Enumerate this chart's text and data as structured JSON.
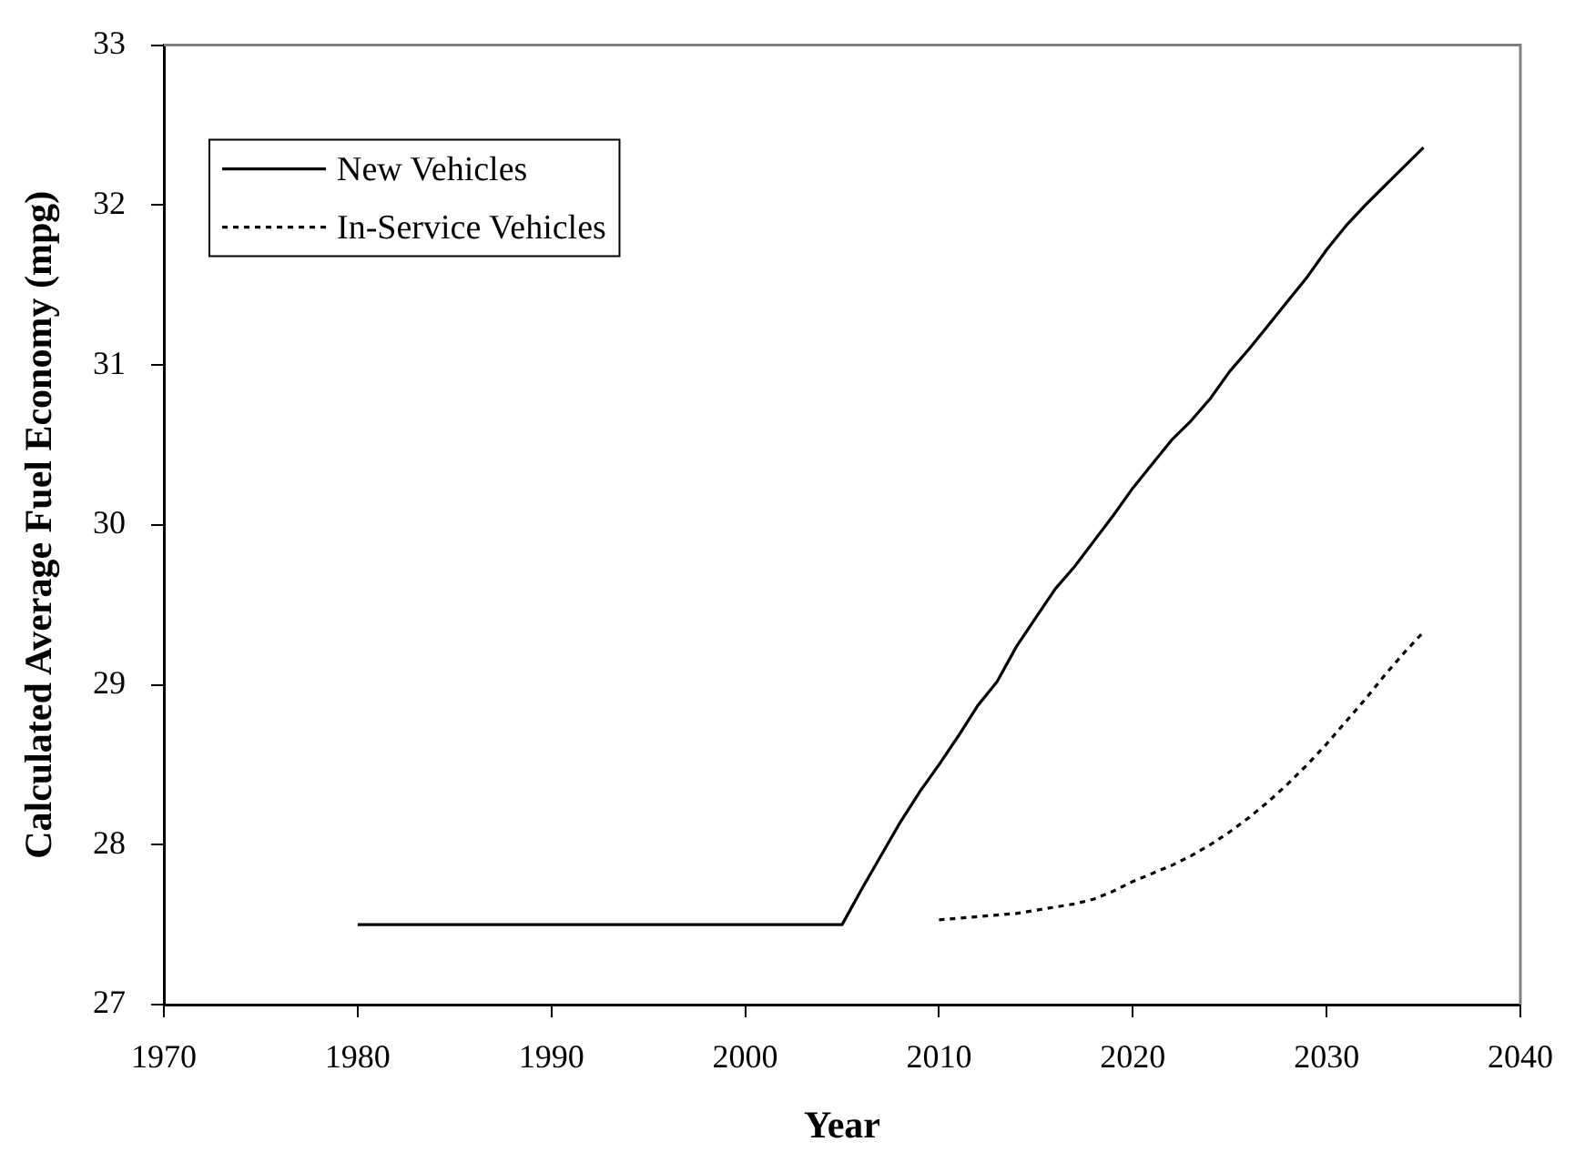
{
  "chart_data": {
    "type": "line",
    "xlabel": "Year",
    "ylabel": "Calculated Average Fuel Economy (mpg)",
    "xlim": [
      1970,
      2040
    ],
    "xticks": [
      1970,
      1980,
      1990,
      2000,
      2010,
      2020,
      2030,
      2040
    ],
    "ylim": [
      27,
      33
    ],
    "yticks": [
      27,
      28,
      29,
      30,
      31,
      32,
      33
    ],
    "legend": "top left",
    "series": [
      {
        "name": "New Vehicles",
        "color": "#000000",
        "line_style": "solid",
        "x": [
          1980,
          2005,
          2006,
          2007,
          2008,
          2009,
          2010,
          2011,
          2012,
          2013,
          2014,
          2015,
          2016,
          2017,
          2018,
          2019,
          2020,
          2021,
          2022,
          2023,
          2024,
          2025,
          2026,
          2027,
          2028,
          2029,
          2030,
          2031,
          2032,
          2033,
          2034,
          2035
        ],
        "values": [
          27.5,
          27.5,
          27.72,
          27.93,
          28.14,
          28.33,
          28.5,
          28.68,
          28.87,
          29.02,
          29.24,
          29.42,
          29.6,
          29.74,
          29.9,
          30.06,
          30.23,
          30.38,
          30.53,
          30.65,
          30.79,
          30.96,
          31.1,
          31.25,
          31.4,
          31.55,
          31.72,
          31.87,
          32.0,
          32.12,
          32.24,
          32.36
        ]
      },
      {
        "name": "In-Service Vehicles",
        "color": "#000000",
        "line_style": "dotted",
        "x": [
          2010,
          2011,
          2012,
          2013,
          2014,
          2015,
          2016,
          2017,
          2018,
          2019,
          2020,
          2021,
          2022,
          2023,
          2024,
          2025,
          2026,
          2027,
          2028,
          2029,
          2030,
          2031,
          2032,
          2033,
          2034,
          2035
        ],
        "values": [
          27.53,
          27.54,
          27.55,
          27.56,
          27.57,
          27.59,
          27.61,
          27.63,
          27.66,
          27.71,
          27.77,
          27.82,
          27.87,
          27.93,
          28.0,
          28.08,
          28.17,
          28.27,
          28.38,
          28.5,
          28.63,
          28.77,
          28.91,
          29.06,
          29.2,
          29.33
        ]
      }
    ]
  }
}
